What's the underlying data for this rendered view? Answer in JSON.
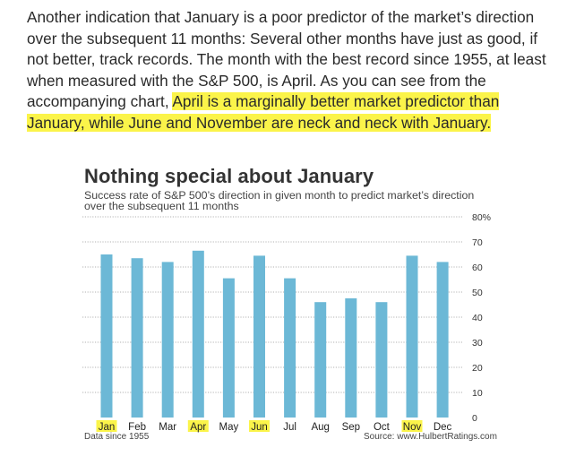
{
  "article": {
    "text_plain": "Another indication that January is a poor predictor of the market’s direction over the subsequent 11 months: Several other months have just as good, if not better, track records. The month with the best record since 1955, at least when measured with the S&P 500, is April. As you can see from the accompanying chart,",
    "text_highlighted": "April is a marginally better market predictor than January, while June and November are neck and neck with January."
  },
  "chart_data": {
    "type": "bar",
    "title": "Nothing special about January",
    "subtitle": "Success rate of S&P 500’s direction in given month to predict market’s direction over the subsequent 11 months",
    "categories": [
      "Jan",
      "Feb",
      "Mar",
      "Apr",
      "May",
      "Jun",
      "Jul",
      "Aug",
      "Sep",
      "Oct",
      "Nov",
      "Dec"
    ],
    "values": [
      65,
      63.5,
      62,
      66.5,
      55.5,
      64.5,
      55.5,
      46,
      47.5,
      46,
      64.5,
      62
    ],
    "highlighted_categories": [
      "Jan",
      "Apr",
      "Jun",
      "Nov"
    ],
    "ylim": [
      0,
      80
    ],
    "yticks": [
      "0",
      "10",
      "20",
      "30",
      "40",
      "50",
      "60",
      "70",
      "80%"
    ],
    "ytick_values": [
      0,
      10,
      20,
      30,
      40,
      50,
      60,
      70,
      80
    ],
    "grid": true,
    "bar_color": "#6cb8d6",
    "highlight_color": "#fbf44a",
    "grid_color": "#999999",
    "footnote_left": "Data since 1955",
    "footnote_right": "Source: www.HulbertRatings.com"
  }
}
